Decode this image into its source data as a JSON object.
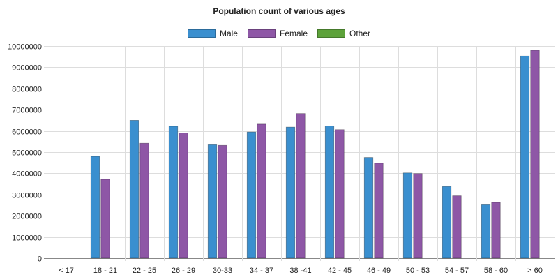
{
  "chart_data": {
    "type": "bar",
    "title": "Population count of various ages",
    "xlabel": "",
    "ylabel": "",
    "categories": [
      "< 17",
      "18 - 21",
      "22 - 25",
      "26 - 29",
      "30-33",
      "34 - 37",
      "38  -41",
      "42 - 45",
      "46 - 49",
      "50 - 53",
      "54 - 57",
      "58 - 60",
      "> 60"
    ],
    "series": [
      {
        "name": "Male",
        "color": "#3a8fcf",
        "values": [
          0,
          4800000,
          6500000,
          6220000,
          5350000,
          5950000,
          6180000,
          6230000,
          4750000,
          4020000,
          3380000,
          2520000,
          9530000
        ]
      },
      {
        "name": "Female",
        "color": "#8e57a6",
        "values": [
          0,
          3720000,
          5420000,
          5900000,
          5320000,
          6320000,
          6820000,
          6060000,
          4480000,
          3990000,
          2940000,
          2630000,
          9800000
        ]
      },
      {
        "name": "Other",
        "color": "#5da23a",
        "values": [
          0,
          0,
          0,
          0,
          0,
          0,
          0,
          0,
          0,
          0,
          0,
          0,
          0
        ]
      }
    ],
    "ylim": [
      0,
      10000000
    ],
    "yticks": [
      0,
      1000000,
      2000000,
      3000000,
      4000000,
      5000000,
      6000000,
      7000000,
      8000000,
      9000000,
      10000000
    ],
    "grid": true,
    "legend_position": "top-center"
  }
}
